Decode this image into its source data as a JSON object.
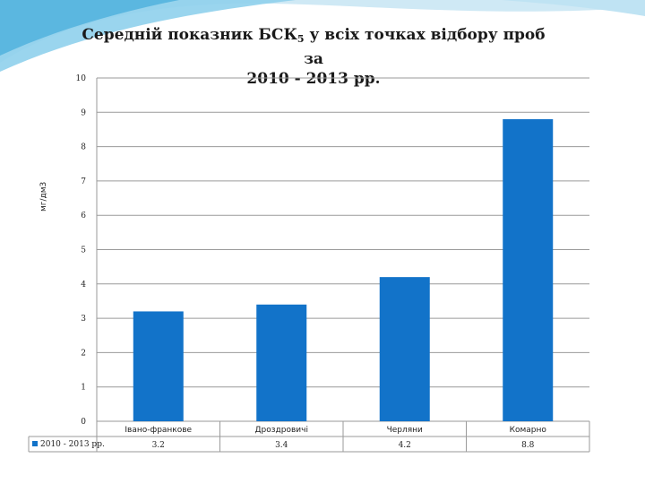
{
  "slide": {
    "title_main": "Середній показник БСК",
    "title_sub": "5",
    "title_rest": " у всіх точках відбору проб за",
    "title_line2": "2010 - 2013 рр."
  },
  "colors": {
    "bar": "#1273c9",
    "wave": "#5fb6dc",
    "grid": "#9a9a9a"
  },
  "chart_data": {
    "type": "bar",
    "title": "Середній показник БСК5 у всіх точках відбору проб за 2010 - 2013 рр.",
    "ylabel": "мг/дм3",
    "xlabel": "",
    "categories": [
      "Івано-франкове",
      "Дрозд​ровичі",
      "Черляни",
      "Комарно"
    ],
    "series": [
      {
        "name": "2010 - 2013 рр.",
        "values": [
          3.2,
          3.4,
          4.2,
          8.8
        ]
      }
    ],
    "value_labels": [
      "3.2",
      "3.4",
      "4.2",
      "8.8"
    ],
    "ylim": [
      0,
      10
    ],
    "yticks": [
      0,
      1,
      2,
      3,
      4,
      5,
      6,
      7,
      8,
      9,
      10
    ],
    "grid": true,
    "legend": "bottom-left data table"
  }
}
